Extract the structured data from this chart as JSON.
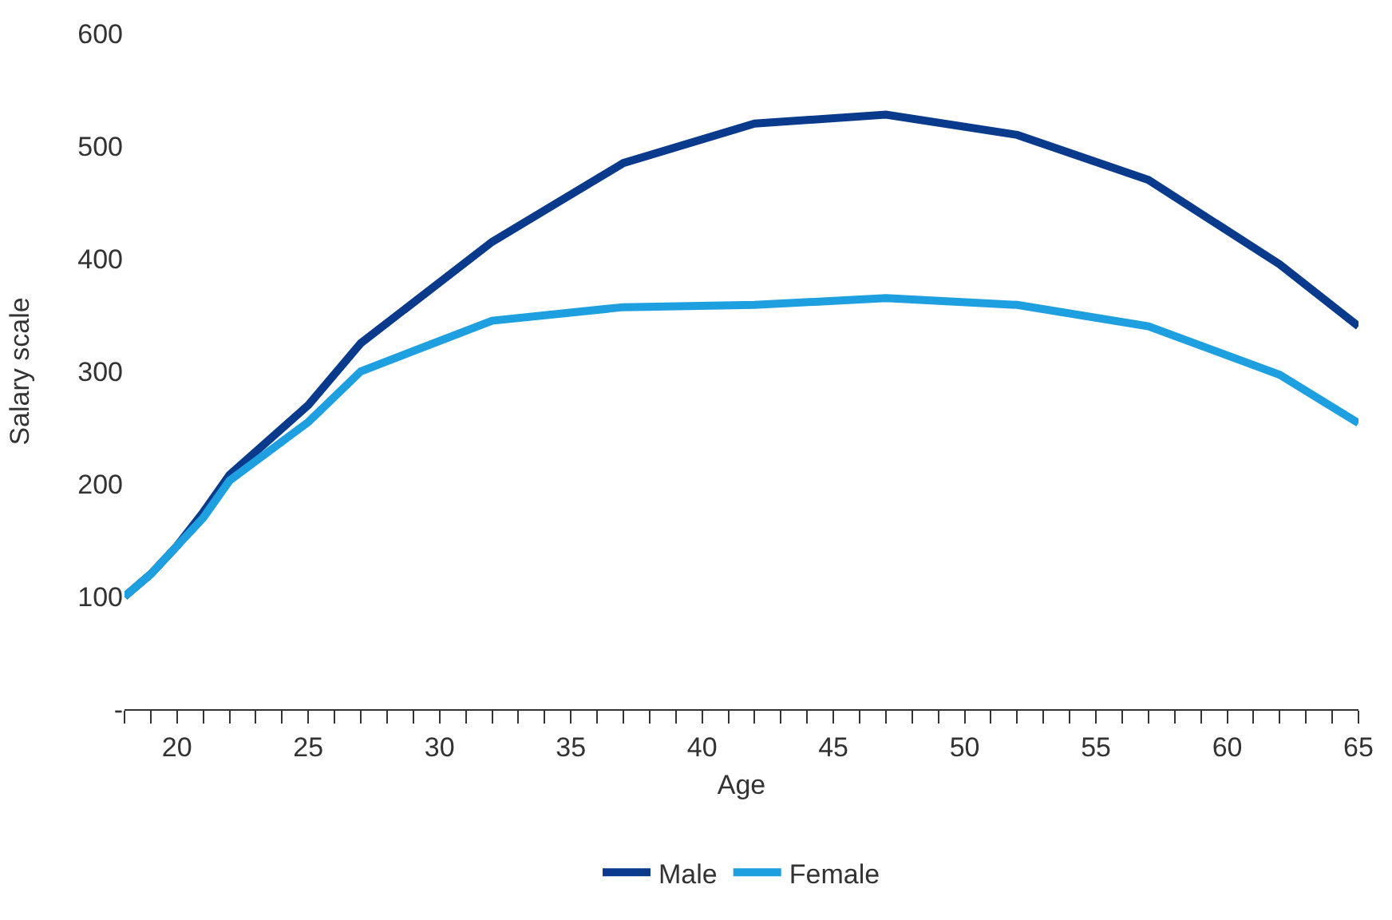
{
  "chart_data": {
    "type": "line",
    "xlabel": "Age",
    "ylabel": "Salary scale",
    "x": [
      18,
      19,
      20,
      21,
      22,
      25,
      27,
      32,
      37,
      42,
      47,
      52,
      57,
      62,
      65
    ],
    "series": [
      {
        "name": "Male",
        "color": "#0a3a8c",
        "values": [
          100,
          120,
          145,
          175,
          208,
          270,
          325,
          415,
          485,
          520,
          528,
          510,
          470,
          395,
          340
        ]
      },
      {
        "name": "Female",
        "color": "#1ea0e0",
        "values": [
          100,
          120,
          145,
          170,
          203,
          255,
          300,
          345,
          357,
          359,
          365,
          359,
          340,
          297,
          254
        ]
      }
    ],
    "xlim": [
      18,
      65
    ],
    "xticks": [
      {
        "value": 18,
        "label": null
      },
      {
        "value": 19,
        "label": null
      },
      20,
      {
        "value": 21,
        "label": null
      },
      {
        "value": 22,
        "label": null
      },
      {
        "value": 23,
        "label": null
      },
      {
        "value": 24,
        "label": null
      },
      25,
      {
        "value": 26,
        "label": null
      },
      {
        "value": 27,
        "label": null
      },
      {
        "value": 28,
        "label": null
      },
      {
        "value": 29,
        "label": null
      },
      30,
      {
        "value": 31,
        "label": null
      },
      {
        "value": 32,
        "label": null
      },
      {
        "value": 33,
        "label": null
      },
      {
        "value": 34,
        "label": null
      },
      35,
      {
        "value": 36,
        "label": null
      },
      {
        "value": 37,
        "label": null
      },
      {
        "value": 38,
        "label": null
      },
      {
        "value": 39,
        "label": null
      },
      40,
      {
        "value": 41,
        "label": null
      },
      {
        "value": 42,
        "label": null
      },
      {
        "value": 43,
        "label": null
      },
      {
        "value": 44,
        "label": null
      },
      45,
      {
        "value": 46,
        "label": null
      },
      {
        "value": 47,
        "label": null
      },
      {
        "value": 48,
        "label": null
      },
      {
        "value": 49,
        "label": null
      },
      50,
      {
        "value": 51,
        "label": null
      },
      {
        "value": 52,
        "label": null
      },
      {
        "value": 53,
        "label": null
      },
      {
        "value": 54,
        "label": null
      },
      55,
      {
        "value": 56,
        "label": null
      },
      {
        "value": 57,
        "label": null
      },
      {
        "value": 58,
        "label": null
      },
      {
        "value": 59,
        "label": null
      },
      60,
      {
        "value": 61,
        "label": null
      },
      {
        "value": 62,
        "label": null
      },
      {
        "value": 63,
        "label": null
      },
      {
        "value": 64,
        "label": null
      },
      65
    ],
    "ylim": [
      0,
      600
    ],
    "yticks": [
      {
        "value": 0,
        "label": "-"
      },
      100,
      200,
      300,
      400,
      500,
      600
    ],
    "legend": "bottom",
    "marker": "none",
    "line_style": "solid"
  }
}
